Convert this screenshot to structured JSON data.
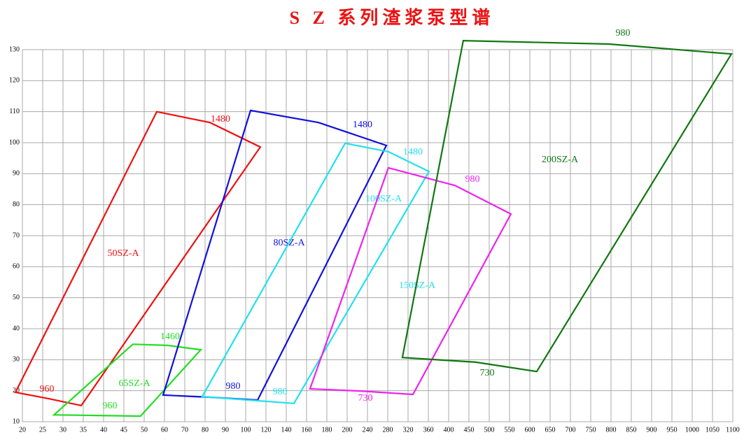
{
  "chart_data": {
    "type": "region",
    "title": "S Z 系列渣浆泵型谱",
    "xticks": [
      20,
      25,
      30,
      35,
      40,
      45,
      50,
      60,
      70,
      80,
      90,
      100,
      120,
      140,
      160,
      180,
      200,
      240,
      280,
      320,
      360,
      400,
      450,
      500,
      550,
      600,
      650,
      700,
      750,
      800,
      850,
      900,
      950,
      1000,
      1050,
      1100
    ],
    "xlim": [
      20,
      1100
    ],
    "ylim": [
      10,
      130
    ],
    "yticks": [
      10,
      20,
      30,
      40,
      50,
      60,
      70,
      80,
      90,
      100,
      110,
      120,
      130
    ],
    "grid": true,
    "series": [
      {
        "name": "50SZ-A",
        "color": "#ee1111",
        "speed_labels": [
          "1480",
          "960"
        ],
        "x": [
          18.3,
          56.2,
          82.4,
          114.4,
          34.5,
          26.6
        ],
        "values": [
          19.5,
          110,
          106.5,
          98.6,
          15.2,
          17.4
        ]
      },
      {
        "name": "65SZ-A",
        "color": "#22dd22",
        "speed_labels": [
          "1460",
          "960"
        ],
        "x": [
          27.8,
          47.2,
          61.7,
          77.9,
          49.1,
          38.6
        ],
        "values": [
          12.2,
          35,
          34.6,
          33.2,
          11.8,
          12
        ]
      },
      {
        "name": "80SZ-A",
        "color": "#1111dd",
        "speed_labels": [
          "1480",
          "980"
        ],
        "x": [
          59.3,
          104.8,
          171.8,
          277.2,
          111.8,
          82.4
        ],
        "values": [
          18.6,
          110.4,
          106.5,
          99.1,
          17,
          17.9
        ]
      },
      {
        "name": "100SZ-A",
        "color": "#22e0ee",
        "speed_labels": [
          "1480",
          "980"
        ],
        "x": [
          78.6,
          198,
          281.2,
          361.2,
          147.6,
          102.8
        ],
        "values": [
          18.1,
          99.8,
          97.1,
          90.7,
          15.9,
          17
        ]
      },
      {
        "name": "150SZ-A",
        "color": "#ee22ee",
        "label_color": "#22e0ee",
        "speed_labels": [
          "980",
          "730"
        ],
        "x": [
          163.4,
          281.2,
          415.5,
          553.5,
          329.6,
          226.4
        ],
        "values": [
          20.6,
          91.9,
          86.2,
          77,
          18.8,
          19.9
        ]
      },
      {
        "name": "200SZ-A",
        "color": "#117711",
        "speed_labels": [
          "980",
          "730"
        ],
        "x": [
          308.8,
          436,
          795,
          1096.5,
          617,
          467
        ],
        "values": [
          30.7,
          132.9,
          131.8,
          128.6,
          26.2,
          29.2
        ]
      }
    ]
  }
}
